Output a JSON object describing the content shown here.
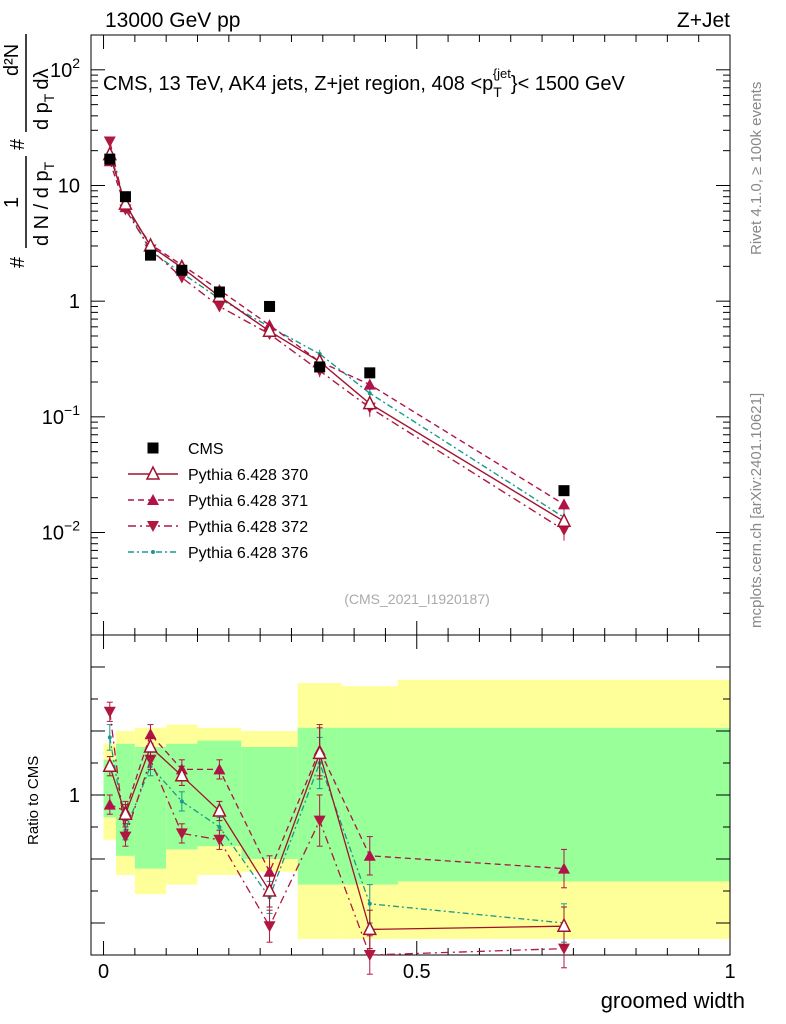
{
  "header": {
    "energy_label": "13000 GeV pp",
    "process_label": "Z+Jet"
  },
  "side_labels": {
    "rivet": "Rivet 4.1.0, ≥ 100k events",
    "mcplots": "mcplots.cern.ch [arXiv:2401.10621]"
  },
  "colors": {
    "cms": "#000000",
    "p370": "#a0132e",
    "p371": "#b0134a",
    "p372": "#b01840",
    "p376": "#1a9a8c",
    "band_outer": "#ffff99",
    "band_inner": "#99ff99"
  },
  "chart_data": [
    {
      "type": "line",
      "name": "main",
      "title": "CMS, 13 TeV, AK4 jets, Z+jet region, 408 <p_T^{jet}< 1500 GeV",
      "title_parts": {
        "prefix": "CMS, 13 TeV, AK4 jets, Z+jet region, 408 <p",
        "sub": "T",
        "sup": "{jet",
        "suffix": "}< 1500 GeV"
      },
      "ylabel": "1/N dN/dp_T d²N/dp_T dλ",
      "ylabel_parts": {
        "hash1": "#",
        "one": "1",
        "dn": "d N / d p",
        "t": "T",
        "hash2": "#",
        "num": "d²N",
        "den": "d p",
        "tt": "T",
        "lam": "dλ"
      },
      "xlim": [
        -0.02,
        1.0
      ],
      "ylim_log": [
        0.0013,
        200
      ],
      "yscale": "log",
      "yticks": [
        {
          "value": 0.01,
          "label": "10",
          "exp": "−2"
        },
        {
          "value": 0.1,
          "label": "10",
          "exp": "−1"
        },
        {
          "value": 1,
          "label": "1",
          "exp": ""
        },
        {
          "value": 10,
          "label": "10",
          "exp": ""
        },
        {
          "value": 100,
          "label": "10",
          "exp": "2"
        }
      ],
      "watermark": "(CMS_2021_I1920187)",
      "legend_position": "bottom-left",
      "x": [
        0.01,
        0.035,
        0.075,
        0.125,
        0.185,
        0.265,
        0.345,
        0.425,
        0.735
      ],
      "bins": [
        [
          0.0,
          0.02
        ],
        [
          0.02,
          0.05
        ],
        [
          0.05,
          0.1
        ],
        [
          0.1,
          0.15
        ],
        [
          0.15,
          0.22
        ],
        [
          0.22,
          0.31
        ],
        [
          0.31,
          0.38
        ],
        [
          0.38,
          0.47
        ],
        [
          0.47,
          1.0
        ]
      ],
      "series": [
        {
          "name": "CMS",
          "style": "cms",
          "values": [
            16.9,
            8.0,
            2.5,
            1.85,
            1.2,
            0.9,
            0.27,
            0.24,
            0.023
          ],
          "errors": [
            0.6,
            0.3,
            0.1,
            0.08,
            0.06,
            0.05,
            0.02,
            0.02,
            0.002
          ]
        },
        {
          "name": "Pythia 6.428 370",
          "style": "p370",
          "values": [
            18.5,
            6.9,
            3.0,
            1.95,
            1.1,
            0.55,
            0.3,
            0.13,
            0.0125
          ],
          "errors": [
            1.0,
            0.4,
            0.15,
            0.1,
            0.06,
            0.04,
            0.03,
            0.02,
            0.002
          ]
        },
        {
          "name": "Pythia 6.428 371",
          "style": "p371",
          "values": [
            16.2,
            6.5,
            3.1,
            2.05,
            1.25,
            0.62,
            0.3,
            0.19,
            0.0175
          ],
          "errors": [
            1.0,
            0.4,
            0.15,
            0.1,
            0.06,
            0.04,
            0.03,
            0.02,
            0.002
          ]
        },
        {
          "name": "Pythia 6.428 372",
          "style": "p372",
          "values": [
            24.0,
            6.2,
            2.8,
            1.6,
            0.9,
            0.52,
            0.25,
            0.12,
            0.0105
          ],
          "errors": [
            1.0,
            0.4,
            0.15,
            0.1,
            0.06,
            0.04,
            0.03,
            0.02,
            0.002
          ]
        },
        {
          "name": "Pythia 6.428 376",
          "style": "p376",
          "values": [
            20.0,
            6.7,
            2.7,
            1.75,
            1.05,
            0.6,
            0.35,
            0.16,
            0.0135
          ],
          "errors": [
            1.0,
            0.4,
            0.15,
            0.1,
            0.06,
            0.04,
            0.03,
            0.02,
            0.002
          ]
        }
      ]
    },
    {
      "type": "line",
      "name": "ratio",
      "ylabel": "Ratio to CMS",
      "xlabel": "groomed width",
      "xlim": [
        -0.02,
        1.0
      ],
      "ylim": [
        0.5,
        1.5
      ],
      "xticks": [
        {
          "value": 0,
          "label": "0"
        },
        {
          "value": 0.5,
          "label": "0.5"
        },
        {
          "value": 1,
          "label": "1"
        }
      ],
      "yticks": [
        {
          "value": 1,
          "label": "1"
        }
      ],
      "bands": {
        "bins": [
          [
            0.0,
            0.02
          ],
          [
            0.02,
            0.05
          ],
          [
            0.05,
            0.1
          ],
          [
            0.1,
            0.15
          ],
          [
            0.15,
            0.22
          ],
          [
            0.22,
            0.31
          ],
          [
            0.31,
            0.38
          ],
          [
            0.38,
            0.47
          ],
          [
            0.47,
            1.0
          ]
        ],
        "outer": [
          [
            0.86,
            1.16
          ],
          [
            0.75,
            1.2
          ],
          [
            0.69,
            1.21
          ],
          [
            0.72,
            1.22
          ],
          [
            0.75,
            1.21
          ],
          [
            0.76,
            1.2
          ],
          [
            0.55,
            1.35
          ],
          [
            0.55,
            1.34
          ],
          [
            0.55,
            1.36
          ]
        ],
        "inner": [
          [
            0.93,
            1.11
          ],
          [
            0.81,
            1.16
          ],
          [
            0.77,
            1.15
          ],
          [
            0.83,
            1.16
          ],
          [
            0.84,
            1.17
          ],
          [
            0.8,
            1.15
          ],
          [
            0.72,
            1.21
          ],
          [
            0.72,
            1.21
          ],
          [
            0.73,
            1.21
          ]
        ]
      },
      "series": [
        {
          "name": "Pythia 6.428 370",
          "style": "p370",
          "values": [
            1.09,
            0.94,
            1.15,
            1.06,
            0.95,
            0.7,
            1.13,
            0.58,
            0.59
          ],
          "errors": [
            0.03,
            0.03,
            0.03,
            0.03,
            0.03,
            0.05,
            0.08,
            0.06,
            0.06
          ]
        },
        {
          "name": "Pythia 6.428 371",
          "style": "p371",
          "values": [
            0.97,
            0.95,
            1.19,
            1.08,
            1.08,
            0.76,
            1.14,
            0.81,
            0.77
          ],
          "errors": [
            0.03,
            0.03,
            0.03,
            0.03,
            0.03,
            0.05,
            0.08,
            0.06,
            0.06
          ]
        },
        {
          "name": "Pythia 6.428 372",
          "style": "p372",
          "values": [
            1.26,
            0.87,
            1.11,
            0.88,
            0.86,
            0.59,
            0.92,
            0.5,
            0.52
          ],
          "errors": [
            0.03,
            0.03,
            0.03,
            0.03,
            0.03,
            0.05,
            0.08,
            0.06,
            0.06
          ]
        },
        {
          "name": "Pythia 6.428 376",
          "style": "p376",
          "values": [
            1.18,
            0.89,
            1.09,
            0.98,
            0.9,
            0.68,
            1.1,
            0.66,
            0.6
          ],
          "errors": [
            0.04,
            0.03,
            0.03,
            0.03,
            0.03,
            0.05,
            0.08,
            0.06,
            0.06
          ]
        }
      ]
    }
  ]
}
